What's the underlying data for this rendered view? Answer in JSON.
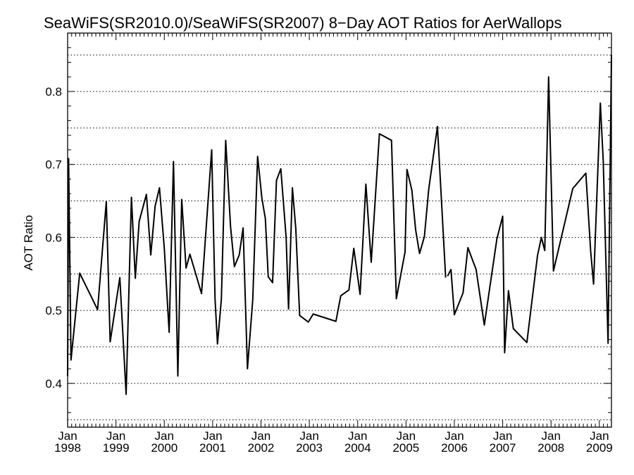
{
  "chart_data": {
    "type": "line",
    "title": "SeaWiFS(SR2010.0)/SeaWiFS(SR2007) 8−Day AOT Ratios for AerWallops",
    "xlabel": "",
    "ylabel": "AOT Ratio",
    "xlim": [
      1998.0,
      2009.25
    ],
    "ylim": [
      0.34,
      0.88
    ],
    "grid": true,
    "legend": "none",
    "y_ticks": [
      {
        "value": 0.4,
        "label": "0.4"
      },
      {
        "value": 0.5,
        "label": "0.5"
      },
      {
        "value": 0.6,
        "label": "0.6"
      },
      {
        "value": 0.7,
        "label": "0.7"
      },
      {
        "value": 0.8,
        "label": "0.8"
      }
    ],
    "y_gridlines": [
      0.35,
      0.4,
      0.45,
      0.5,
      0.55,
      0.6,
      0.65,
      0.7,
      0.75,
      0.8,
      0.85
    ],
    "x_ticks": [
      {
        "value": 1998,
        "month": "Jan",
        "year": "1998"
      },
      {
        "value": 1999,
        "month": "Jan",
        "year": "1999"
      },
      {
        "value": 2000,
        "month": "Jan",
        "year": "2000"
      },
      {
        "value": 2001,
        "month": "Jan",
        "year": "2001"
      },
      {
        "value": 2002,
        "month": "Jan",
        "year": "2002"
      },
      {
        "value": 2003,
        "month": "Jan",
        "year": "2003"
      },
      {
        "value": 2004,
        "month": "Jan",
        "year": "2004"
      },
      {
        "value": 2005,
        "month": "Jan",
        "year": "2005"
      },
      {
        "value": 2006,
        "month": "Jan",
        "year": "2006"
      },
      {
        "value": 2007,
        "month": "Jan",
        "year": "2007"
      },
      {
        "value": 2008,
        "month": "Jan",
        "year": "2008"
      },
      {
        "value": 2009,
        "month": "Jan",
        "year": "2009"
      }
    ],
    "series": [
      {
        "segments": [
          [
            [
              1997.98,
              0.41
            ],
            [
              1998.02,
              0.708
            ],
            [
              1998.07,
              0.432
            ],
            [
              1998.25,
              0.551
            ],
            [
              1998.62,
              0.501
            ],
            [
              1998.8,
              0.649
            ],
            [
              1998.88,
              0.457
            ],
            [
              1999.08,
              0.545
            ],
            [
              1999.21,
              0.385
            ],
            [
              1999.32,
              0.655
            ],
            [
              1999.4,
              0.544
            ],
            [
              1999.48,
              0.622
            ],
            [
              1999.63,
              0.659
            ],
            [
              1999.72,
              0.576
            ],
            [
              1999.81,
              0.643
            ],
            [
              1999.9,
              0.668
            ],
            [
              2000.0,
              0.585
            ],
            [
              2000.1,
              0.47
            ],
            [
              2000.19,
              0.704
            ],
            [
              2000.28,
              0.41
            ],
            [
              2000.36,
              0.652
            ],
            [
              2000.45,
              0.558
            ],
            [
              2000.53,
              0.577
            ],
            [
              2000.77,
              0.523
            ],
            [
              2000.98,
              0.72
            ],
            [
              2001.05,
              0.515
            ],
            [
              2001.1,
              0.454
            ],
            [
              2001.18,
              0.515
            ],
            [
              2001.27,
              0.733
            ],
            [
              2001.37,
              0.615
            ],
            [
              2001.45,
              0.56
            ],
            [
              2001.55,
              0.576
            ],
            [
              2001.63,
              0.613
            ],
            [
              2001.72,
              0.42
            ],
            [
              2001.83,
              0.515
            ],
            [
              2001.93,
              0.711
            ],
            [
              2002.02,
              0.653
            ],
            [
              2002.09,
              0.626
            ],
            [
              2002.15,
              0.546
            ],
            [
              2002.24,
              0.538
            ],
            [
              2002.32,
              0.678
            ],
            [
              2002.41,
              0.694
            ],
            [
              2002.52,
              0.6
            ],
            [
              2002.57,
              0.502
            ],
            [
              2002.65,
              0.668
            ],
            [
              2002.72,
              0.612
            ],
            [
              2002.8,
              0.493
            ],
            [
              2002.98,
              0.484
            ],
            [
              2003.08,
              0.495
            ],
            [
              2003.55,
              0.485
            ],
            [
              2003.65,
              0.52
            ],
            [
              2003.82,
              0.528
            ],
            [
              2003.92,
              0.585
            ],
            [
              2004.05,
              0.522
            ],
            [
              2004.17,
              0.673
            ],
            [
              2004.28,
              0.566
            ],
            [
              2004.45,
              0.742
            ],
            [
              2004.7,
              0.733
            ],
            [
              2004.8,
              0.516
            ],
            [
              2004.98,
              0.58
            ],
            [
              2005.02,
              0.693
            ],
            [
              2005.12,
              0.665
            ],
            [
              2005.2,
              0.61
            ],
            [
              2005.28,
              0.578
            ],
            [
              2005.38,
              0.601
            ],
            [
              2005.47,
              0.666
            ],
            [
              2005.65,
              0.752
            ],
            [
              2005.82,
              0.545
            ]
          ],
          [
            [
              2005.86,
              0.547
            ],
            [
              2005.93,
              0.556
            ],
            [
              2006.0,
              0.494
            ],
            [
              2006.18,
              0.524
            ],
            [
              2006.28,
              0.586
            ],
            [
              2006.45,
              0.556
            ],
            [
              2006.62,
              0.48
            ],
            [
              2006.88,
              0.598
            ],
            [
              2007.0,
              0.629
            ],
            [
              2007.04,
              0.442
            ],
            [
              2007.12,
              0.527
            ],
            [
              2007.22,
              0.475
            ],
            [
              2007.5,
              0.456
            ],
            [
              2007.72,
              0.575
            ],
            [
              2007.8,
              0.6
            ],
            [
              2007.87,
              0.582
            ],
            [
              2007.95,
              0.82
            ],
            [
              2008.05,
              0.554
            ],
            [
              2008.45,
              0.667
            ],
            [
              2008.72,
              0.688
            ],
            [
              2008.82,
              0.581
            ],
            [
              2008.88,
              0.536
            ],
            [
              2009.02,
              0.784
            ],
            [
              2009.08,
              0.705
            ],
            [
              2009.18,
              0.455
            ],
            [
              2009.25,
              0.85
            ]
          ]
        ]
      }
    ]
  }
}
